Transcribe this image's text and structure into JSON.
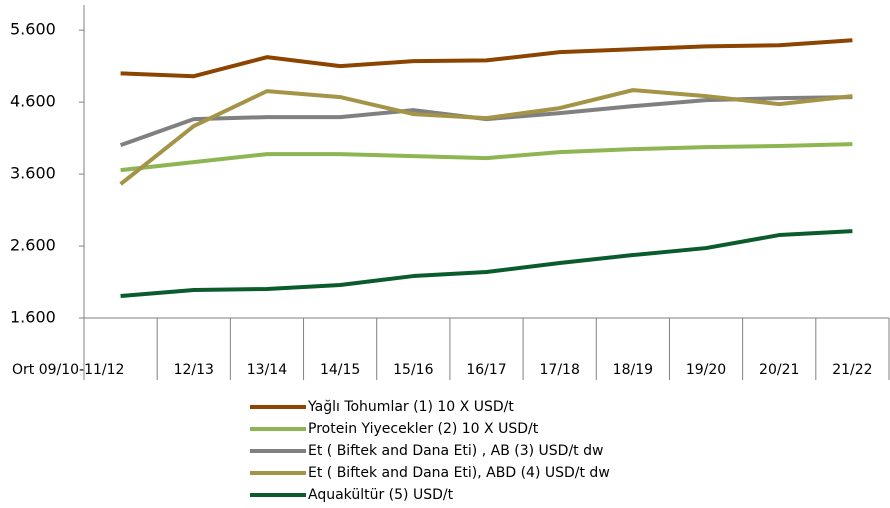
{
  "chart_data": {
    "type": "line",
    "categories": [
      "Ort 09/10-11/12",
      "12/13",
      "13/14",
      "14/15",
      "15/16",
      "16/17",
      "17/18",
      "18/19",
      "19/20",
      "20/21",
      "21/22"
    ],
    "series": [
      {
        "name": "Yağlı Tohumlar  (1) 10 X USD/t",
        "color": "#8b4500",
        "values": [
          5000,
          4960,
          5225,
          5100,
          5170,
          5180,
          5295,
          5335,
          5375,
          5390,
          5460
        ]
      },
      {
        "name": "Protein Yiyecekler (2) 10 X USD/t",
        "color": "#8db652",
        "values": [
          3655,
          3767,
          3878,
          3878,
          3850,
          3822,
          3905,
          3947,
          3975,
          3990,
          4017
        ]
      },
      {
        "name": "Et ( Biftek and Dana Eti) , AB  (3) USD/t dw",
        "color": "#808080",
        "values": [
          4003,
          4364,
          4392,
          4392,
          4489,
          4364,
          4447,
          4544,
          4628,
          4655,
          4670
        ]
      },
      {
        "name": "Et ( Biftek and Dana Eti), ABD  (4) USD/t dw",
        "color": "#a39447",
        "values": [
          3461,
          4267,
          4753,
          4670,
          4434,
          4378,
          4517,
          4767,
          4683,
          4572,
          4683
        ]
      },
      {
        "name": "Aquakültür  (5) USD/t",
        "color": "#0a5c2c",
        "values": [
          1905,
          1989,
          2003,
          2058,
          2183,
          2239,
          2364,
          2475,
          2572,
          2753,
          2808
        ]
      }
    ],
    "ylim": [
      1600,
      5950
    ],
    "yticks": [
      {
        "value": 1600,
        "label": "1.600"
      },
      {
        "value": 2600,
        "label": "2.600"
      },
      {
        "value": 3600,
        "label": "3.600"
      },
      {
        "value": 4600,
        "label": "4.600"
      },
      {
        "value": 5600,
        "label": "5.600"
      }
    ],
    "legend": "bottom"
  }
}
